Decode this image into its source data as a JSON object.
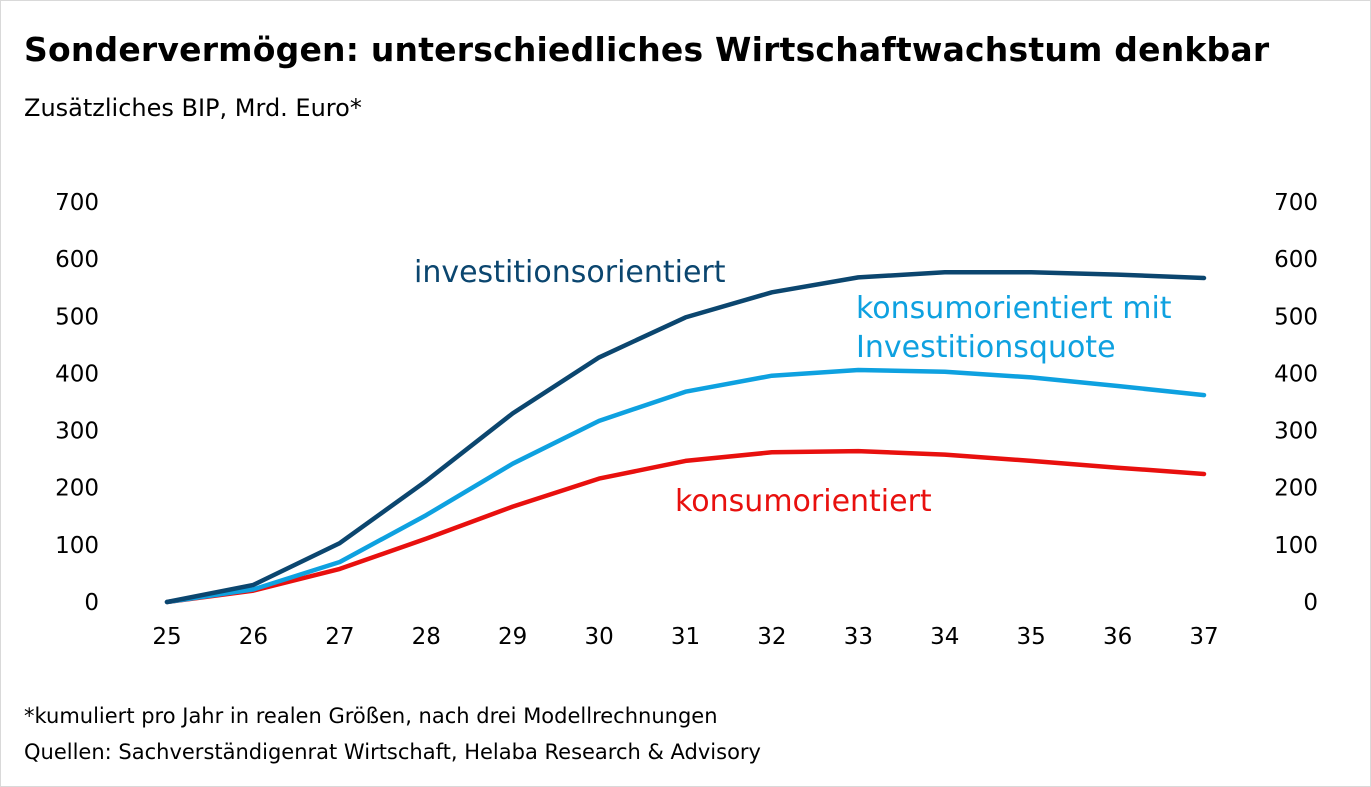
{
  "title": "Sondervermögen: unterschiedliches Wirtschaftwachstum denkbar",
  "subtitle": "Zusätzliches BIP, Mrd. Euro*",
  "footnote": "*kumuliert pro Jahr in realen Größen, nach drei Modellrechnungen",
  "source": "Quellen: Sachverständigenrat Wirtschaft, Helaba Research & Advisory",
  "chart_data": {
    "type": "line",
    "title": "Sondervermögen: unterschiedliches Wirtschaftwachstum denkbar",
    "ylabel": "Zusätzliches BIP, Mrd. Euro*",
    "xlabel": "",
    "x": [
      "25",
      "26",
      "27",
      "28",
      "29",
      "30",
      "31",
      "32",
      "33",
      "34",
      "35",
      "36",
      "37"
    ],
    "ylim": [
      0,
      700
    ],
    "yticks": [
      "0",
      "100",
      "200",
      "300",
      "400",
      "500",
      "600",
      "700"
    ],
    "grid": false,
    "series": [
      {
        "name": "investitionsorientiert",
        "label_lines": [
          "investitionsorientiert"
        ],
        "color": "#0b466f",
        "values": [
          0,
          30,
          103,
          212,
          330,
          428,
          498,
          542,
          568,
          577,
          577,
          573,
          567
        ]
      },
      {
        "name": "konsumorientiert mit Investitionsquote",
        "label_lines": [
          "konsumorientiert mit",
          "Investitionsquote"
        ],
        "color": "#0ea1e0",
        "values": [
          0,
          22,
          70,
          152,
          242,
          317,
          368,
          396,
          406,
          403,
          393,
          378,
          362
        ]
      },
      {
        "name": "konsumorientiert",
        "label_lines": [
          "konsumorientiert"
        ],
        "color": "#e8100e",
        "values": [
          0,
          20,
          58,
          111,
          167,
          216,
          247,
          262,
          264,
          258,
          247,
          235,
          224
        ]
      }
    ]
  }
}
